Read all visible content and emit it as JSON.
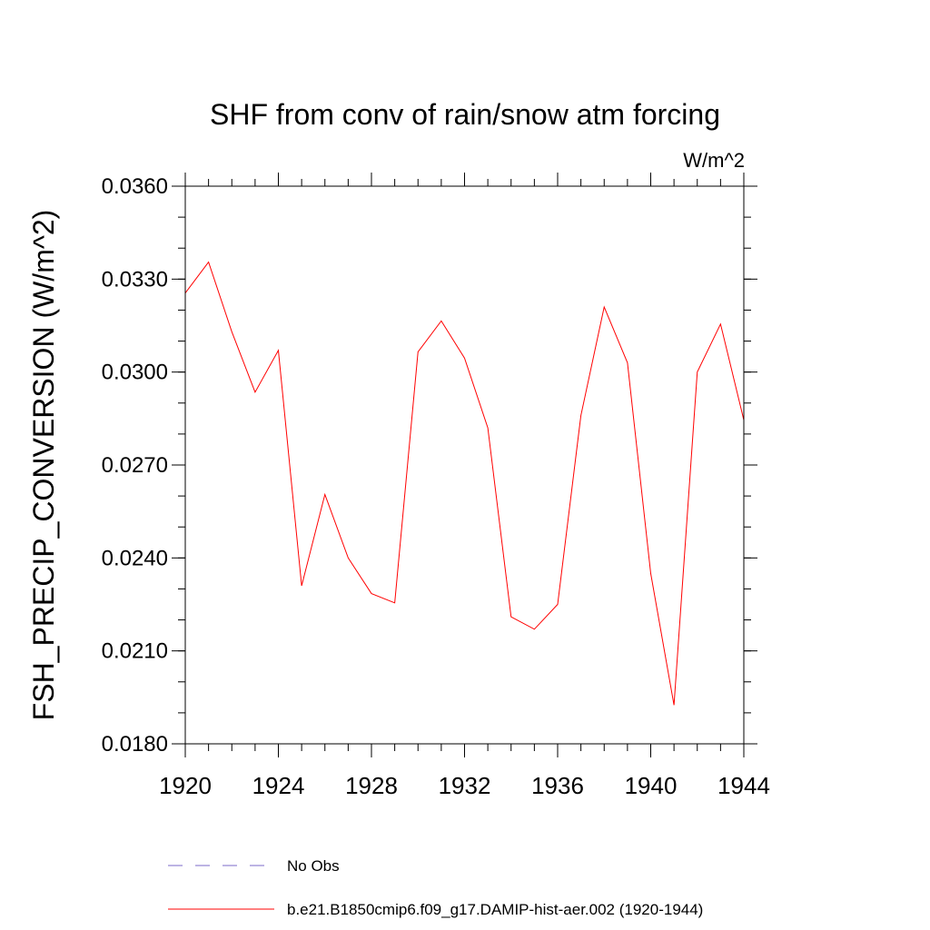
{
  "chart_data": {
    "type": "line",
    "title": "SHF from conv of rain/snow atm forcing",
    "units_label": "W/m^2",
    "ylabel": "FSH_PRECIP_CONVERSION  (W/m^2)",
    "xlabel": "",
    "xlim": [
      1920,
      1944
    ],
    "ylim": [
      0.018,
      0.036
    ],
    "x_ticks": [
      1920,
      1924,
      1928,
      1932,
      1936,
      1940,
      1944
    ],
    "x_tick_labels": [
      "1920",
      "1924",
      "1928",
      "1932",
      "1936",
      "1940",
      "1944"
    ],
    "y_ticks": [
      0.018,
      0.021,
      0.024,
      0.027,
      0.03,
      0.033,
      0.036
    ],
    "y_tick_labels": [
      "0.0180",
      "0.0210",
      "0.0240",
      "0.0270",
      "0.0300",
      "0.0330",
      "0.0360"
    ],
    "grid": false,
    "legend_position": "bottom",
    "series": [
      {
        "name": "No Obs",
        "color": "#7b68c8",
        "dash": "dashed",
        "x": [],
        "values": []
      },
      {
        "name": "b.e21.B1850cmip6.f09_g17.DAMIP-hist-aer.002 (1920-1944)",
        "color": "#ff0000",
        "dash": "solid",
        "x": [
          1920,
          1921,
          1922,
          1923,
          1924,
          1925,
          1926,
          1927,
          1928,
          1929,
          1930,
          1931,
          1932,
          1933,
          1934,
          1935,
          1936,
          1937,
          1938,
          1939,
          1940,
          1941,
          1942,
          1943,
          1944
        ],
        "values": [
          0.03255,
          0.03355,
          0.0313,
          0.02935,
          0.0307,
          0.0231,
          0.02605,
          0.024,
          0.02285,
          0.02255,
          0.03065,
          0.03165,
          0.03045,
          0.0282,
          0.0221,
          0.0217,
          0.0225,
          0.0286,
          0.0321,
          0.0303,
          0.0235,
          0.01925,
          0.03,
          0.03155,
          0.02845
        ]
      }
    ]
  }
}
